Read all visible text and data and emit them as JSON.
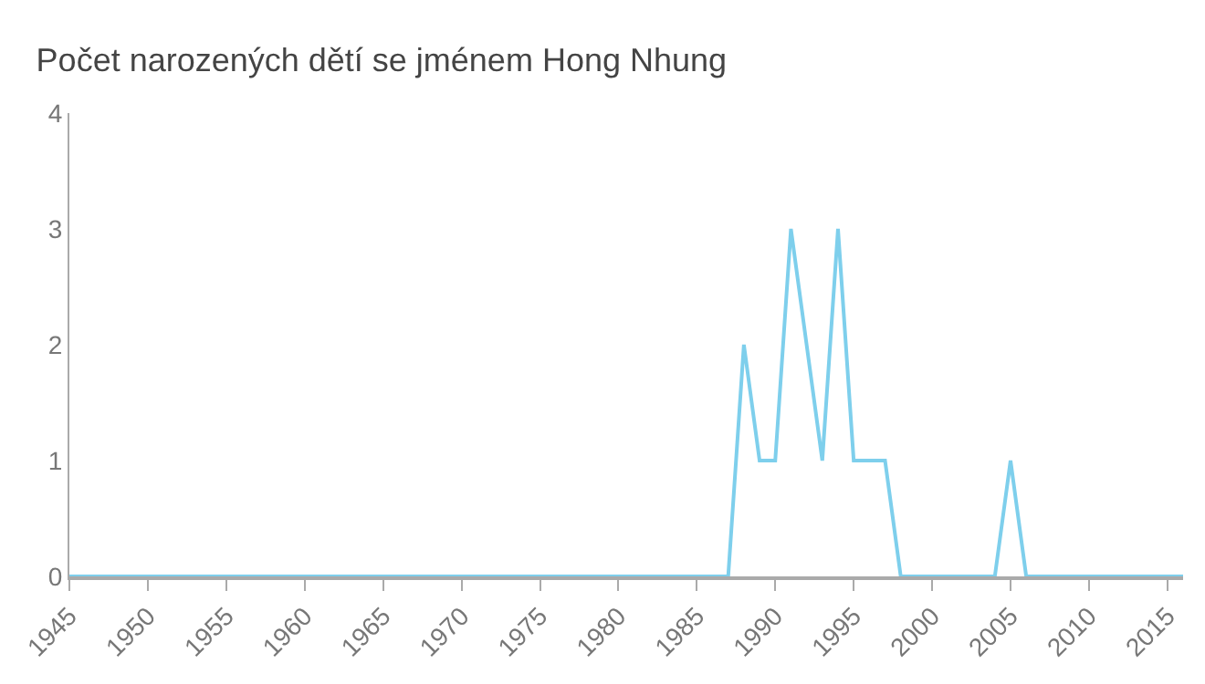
{
  "chart_data": {
    "type": "line",
    "title": "Počet narozených dětí se jménem Hong Nhung",
    "x": [
      1945,
      1946,
      1947,
      1948,
      1949,
      1950,
      1951,
      1952,
      1953,
      1954,
      1955,
      1956,
      1957,
      1958,
      1959,
      1960,
      1961,
      1962,
      1963,
      1964,
      1965,
      1966,
      1967,
      1968,
      1969,
      1970,
      1971,
      1972,
      1973,
      1974,
      1975,
      1976,
      1977,
      1978,
      1979,
      1980,
      1981,
      1982,
      1983,
      1984,
      1985,
      1986,
      1987,
      1988,
      1989,
      1990,
      1991,
      1992,
      1993,
      1994,
      1995,
      1996,
      1997,
      1998,
      1999,
      2000,
      2001,
      2002,
      2003,
      2004,
      2005,
      2006,
      2007,
      2008,
      2009,
      2010,
      2011,
      2012,
      2013,
      2014,
      2015,
      2016
    ],
    "series": [
      {
        "color": "#7ecfec",
        "values": [
          0,
          0,
          0,
          0,
          0,
          0,
          0,
          0,
          0,
          0,
          0,
          0,
          0,
          0,
          0,
          0,
          0,
          0,
          0,
          0,
          0,
          0,
          0,
          0,
          0,
          0,
          0,
          0,
          0,
          0,
          0,
          0,
          0,
          0,
          0,
          0,
          0,
          0,
          0,
          0,
          0,
          0,
          0,
          2,
          1,
          1,
          3,
          2,
          1,
          3,
          1,
          1,
          1,
          0,
          0,
          0,
          0,
          0,
          0,
          0,
          1,
          0,
          0,
          0,
          0,
          0,
          0,
          0,
          0,
          0,
          0,
          0
        ]
      }
    ],
    "xlim": [
      1945,
      2016
    ],
    "xticks": [
      1945,
      1950,
      1955,
      1960,
      1965,
      1970,
      1975,
      1980,
      1985,
      1990,
      1995,
      2000,
      2005,
      2010,
      2015
    ],
    "ylim": [
      0,
      4
    ],
    "yticks": [
      0,
      1,
      2,
      3,
      4
    ],
    "grid": false,
    "marker": "none",
    "line_style": "solid"
  }
}
